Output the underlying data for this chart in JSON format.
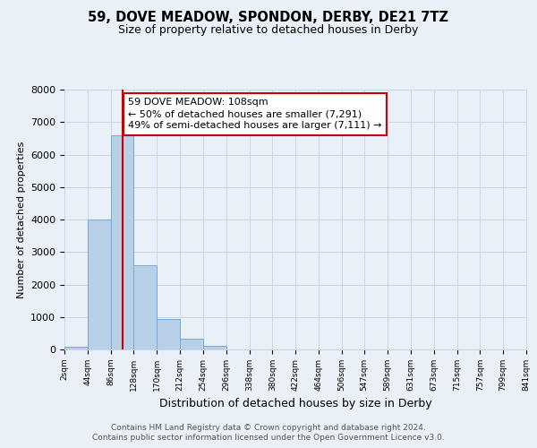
{
  "title": "59, DOVE MEADOW, SPONDON, DERBY, DE21 7TZ",
  "subtitle": "Size of property relative to detached houses in Derby",
  "xlabel": "Distribution of detached houses by size in Derby",
  "ylabel": "Number of detached properties",
  "bin_edges": [
    2,
    44,
    86,
    128,
    170,
    212,
    254,
    296,
    338,
    380,
    422,
    464,
    506,
    547,
    589,
    631,
    673,
    715,
    757,
    799,
    841
  ],
  "bin_heights": [
    75,
    4000,
    6600,
    2600,
    950,
    320,
    100,
    0,
    0,
    0,
    0,
    0,
    0,
    0,
    0,
    0,
    0,
    0,
    0,
    0
  ],
  "bar_color": "#b8cfe8",
  "bar_edge_color": "#7aaad0",
  "bar_linewidth": 0.7,
  "vline_x": 108,
  "vline_color": "#cc0000",
  "annotation_text": "59 DOVE MEADOW: 108sqm\n← 50% of detached houses are smaller (7,291)\n49% of semi-detached houses are larger (7,111) →",
  "annotation_box_edge": "#cc0000",
  "annotation_box_face": "#ffffff",
  "ylim": [
    0,
    8000
  ],
  "yticks": [
    0,
    1000,
    2000,
    3000,
    4000,
    5000,
    6000,
    7000,
    8000
  ],
  "tick_labels": [
    "2sqm",
    "44sqm",
    "86sqm",
    "128sqm",
    "170sqm",
    "212sqm",
    "254sqm",
    "296sqm",
    "338sqm",
    "380sqm",
    "422sqm",
    "464sqm",
    "506sqm",
    "547sqm",
    "589sqm",
    "631sqm",
    "673sqm",
    "715sqm",
    "757sqm",
    "799sqm",
    "841sqm"
  ],
  "grid_color": "#c8d4e8",
  "background_color": "#eaf0f8",
  "footer_line1": "Contains HM Land Registry data © Crown copyright and database right 2024.",
  "footer_line2": "Contains public sector information licensed under the Open Government Licence v3.0.",
  "title_fontsize": 10.5,
  "subtitle_fontsize": 9,
  "xlabel_fontsize": 9,
  "ylabel_fontsize": 8,
  "ytick_fontsize": 8,
  "xtick_fontsize": 6.5,
  "annotation_fontsize": 8,
  "footer_fontsize": 6.5
}
